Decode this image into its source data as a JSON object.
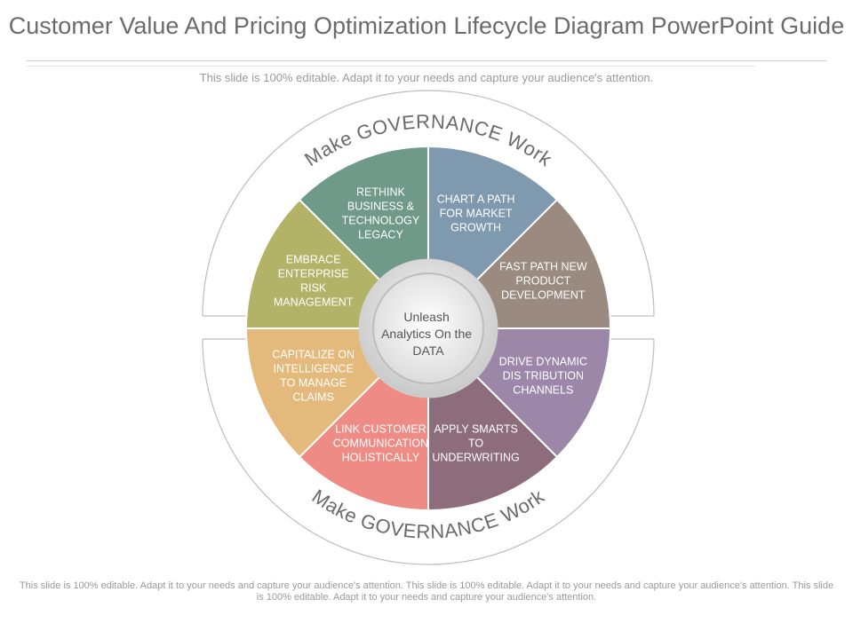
{
  "title": "Customer Value And Pricing Optimization Lifecycle Diagram PowerPoint Guide",
  "subtitle": "This slide is 100% editable. Adapt it to your needs and capture your audience's attention.",
  "footer": "This slide is 100% editable. Adapt it to your needs and capture your audience's attention. This slide is 100% editable. Adapt it to your needs and capture your audience's attention. This slide is 100% editable. Adapt it to your needs and capture your audience's attention.",
  "arc_top_text": "Make GOVERNANCE Work",
  "arc_bottom_text": "Make GOVERNANCE Work",
  "center": {
    "lines": [
      "Unleash",
      "Analytics On the",
      "DATA"
    ]
  },
  "segments": [
    {
      "id": "chart-path",
      "color": "#7f9aae",
      "lines": [
        "CHART  A PATH",
        "FOR MARKET",
        "GROWTH"
      ]
    },
    {
      "id": "fast-path",
      "color": "#9a8a80",
      "lines": [
        "FAST PATH NEW",
        "PRODUCT",
        "DEVELOPMENT"
      ]
    },
    {
      "id": "drive-dynamic",
      "color": "#9c87a8",
      "lines": [
        "DRIVE DYNAMIC",
        "DIS TRIBUTION",
        "CHANNELS"
      ]
    },
    {
      "id": "apply-smarts",
      "color": "#8d6d7c",
      "lines": [
        "APPLY SMARTS",
        "TO",
        "UNDERWRITING"
      ]
    },
    {
      "id": "link-customer",
      "color": "#ed8b84",
      "lines": [
        "LINK CUSTOMER",
        "COMMUNICATION",
        "HOLISTICALLY"
      ]
    },
    {
      "id": "capitalize",
      "color": "#e3b97c",
      "lines": [
        "CAPITALIZE  ON",
        "INTELLIGENCE",
        "TO MANAGE",
        "CLAIMS"
      ]
    },
    {
      "id": "embrace",
      "color": "#b2b367",
      "lines": [
        "EMBRACE",
        "ENTERPRISE",
        "RISK",
        "MANAGEMENT"
      ]
    },
    {
      "id": "rethink",
      "color": "#6f9a8a",
      "lines": [
        "RETHINK",
        "BUSINESS &",
        "TECHNOLOGY",
        "LEGACY"
      ]
    }
  ]
}
